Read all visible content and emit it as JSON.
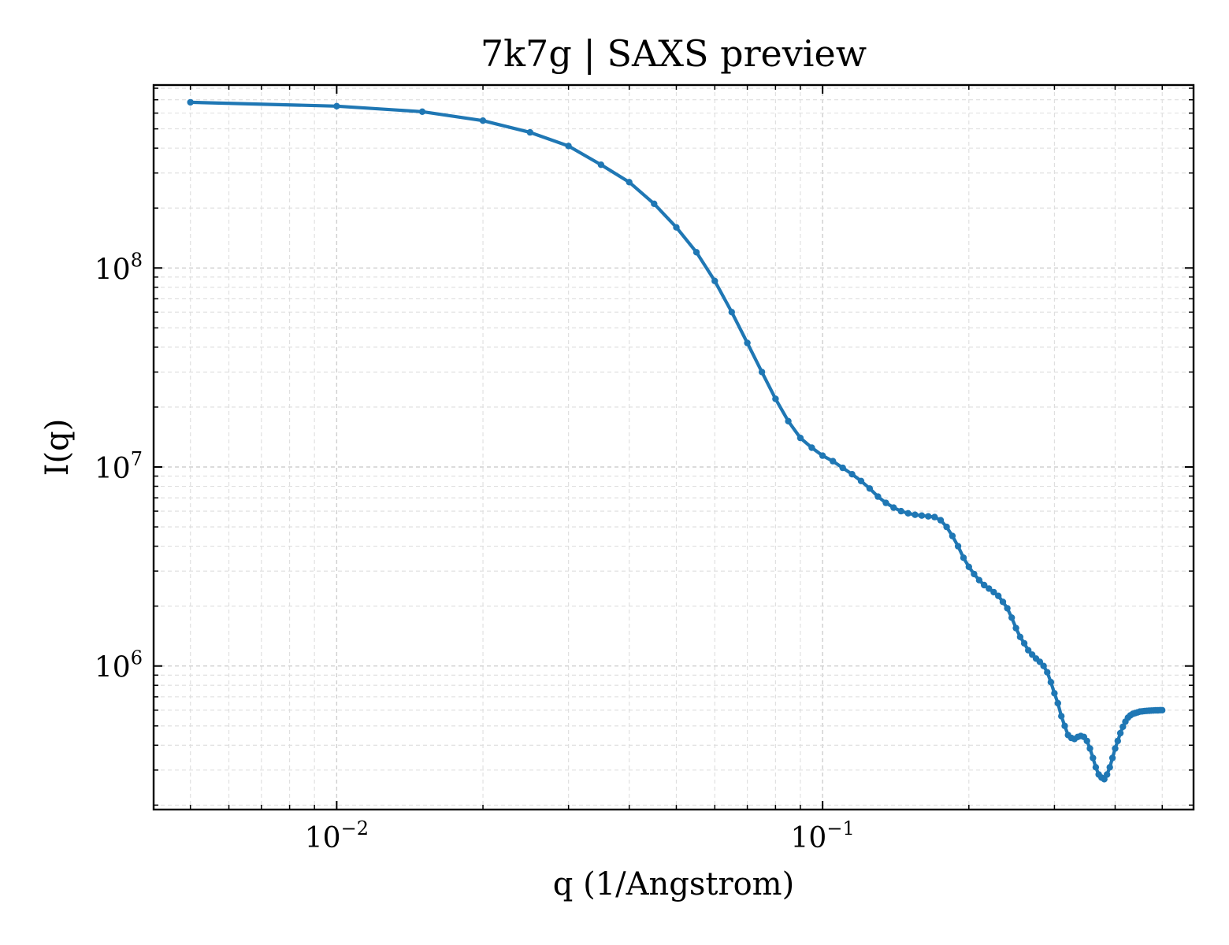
{
  "chart_data": {
    "type": "line",
    "title": "7k7g | SAXS preview",
    "xlabel": "q (1/Angstrom)",
    "ylabel": "I(q)",
    "xscale": "log",
    "yscale": "log",
    "xlim": [
      0.0042,
      0.58
    ],
    "ylim": [
      190000,
      830000000
    ],
    "grid": true,
    "color": "#1f77b4",
    "xticks": [
      {
        "value": 0.01,
        "base": "10",
        "exp": "−2"
      },
      {
        "value": 0.1,
        "base": "10",
        "exp": "−1"
      }
    ],
    "yticks": [
      {
        "value": 1000000,
        "base": "10",
        "exp": "6"
      },
      {
        "value": 10000000,
        "base": "10",
        "exp": "7"
      },
      {
        "value": 100000000,
        "base": "10",
        "exp": "8"
      }
    ],
    "series": [
      {
        "x": [
          0.005,
          0.01,
          0.015,
          0.02,
          0.025,
          0.03,
          0.035,
          0.04,
          0.045,
          0.05,
          0.055,
          0.06,
          0.065,
          0.07,
          0.075,
          0.08,
          0.085,
          0.09,
          0.095,
          0.1,
          0.105,
          0.11,
          0.115,
          0.12,
          0.125,
          0.13,
          0.135,
          0.14,
          0.145,
          0.15,
          0.155,
          0.16,
          0.165,
          0.17,
          0.175,
          0.18,
          0.185,
          0.19,
          0.195,
          0.2,
          0.205,
          0.21,
          0.215,
          0.22,
          0.225,
          0.23,
          0.235,
          0.24,
          0.245,
          0.25,
          0.255,
          0.26,
          0.265,
          0.27,
          0.275,
          0.28,
          0.285,
          0.29,
          0.295,
          0.3,
          0.305,
          0.31,
          0.315,
          0.32,
          0.325,
          0.33,
          0.335,
          0.34,
          0.345,
          0.35,
          0.355,
          0.36,
          0.365,
          0.37,
          0.375,
          0.38,
          0.385,
          0.39,
          0.395,
          0.4,
          0.405,
          0.41,
          0.415,
          0.42,
          0.425,
          0.43,
          0.435,
          0.44,
          0.445,
          0.45,
          0.455,
          0.46,
          0.465,
          0.47,
          0.475,
          0.48,
          0.485,
          0.49,
          0.495,
          0.5
        ],
        "y": [
          680000000,
          650000000,
          610000000,
          550000000,
          480000000,
          410000000,
          330000000,
          270000000,
          210000000,
          160000000,
          120000000,
          86000000,
          60000000,
          42000000,
          30000000,
          22000000,
          17000000,
          14000000,
          12500000,
          11400000,
          10700000,
          9900000,
          9200000,
          8500000,
          7800000,
          7100000,
          6600000,
          6250000,
          6000000,
          5850000,
          5750000,
          5700000,
          5650000,
          5600000,
          5400000,
          5000000,
          4500000,
          4000000,
          3500000,
          3150000,
          2900000,
          2700000,
          2550000,
          2450000,
          2350000,
          2250000,
          2100000,
          1950000,
          1750000,
          1550000,
          1400000,
          1300000,
          1200000,
          1140000,
          1090000,
          1050000,
          1000000,
          930000,
          830000,
          730000,
          650000,
          560000,
          500000,
          450000,
          435000,
          430000,
          440000,
          445000,
          440000,
          420000,
          385000,
          345000,
          310000,
          285000,
          275000,
          270000,
          285000,
          310000,
          345000,
          385000,
          420000,
          460000,
          495000,
          525000,
          550000,
          565000,
          575000,
          580000,
          585000,
          590000,
          592000,
          594000,
          595000,
          596000,
          597000,
          598000,
          599000,
          599000,
          600000,
          600000
        ]
      }
    ]
  }
}
